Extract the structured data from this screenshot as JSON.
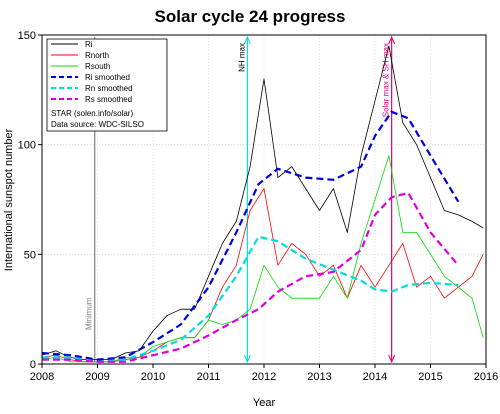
{
  "chart_data": {
    "type": "line",
    "title": "Solar cycle 24 progress",
    "xlabel": "Year",
    "ylabel": "International sunspot number",
    "xlim": [
      2008,
      2016
    ],
    "ylim": [
      0,
      150
    ],
    "x_ticks": [
      "2008",
      "2009",
      "2010",
      "2011",
      "2012",
      "2013",
      "2014",
      "2015",
      "2016"
    ],
    "y_ticks": [
      "0",
      "50",
      "100",
      "150"
    ],
    "grid": true,
    "legend_position": "top-left",
    "legend_notes": [
      "STAR (solen.info/solar)",
      "Data source: WDC-SILSO"
    ],
    "series": [
      {
        "name": "Ri",
        "color": "#000000",
        "style": "solid",
        "x": [
          2008.0,
          2008.25,
          2008.5,
          2008.75,
          2009.0,
          2009.25,
          2009.5,
          2009.75,
          2010.0,
          2010.25,
          2010.5,
          2010.75,
          2011.0,
          2011.25,
          2011.5,
          2011.75,
          2012.0,
          2012.25,
          2012.5,
          2012.75,
          2013.0,
          2013.25,
          2013.5,
          2013.75,
          2014.0,
          2014.25,
          2014.5,
          2014.75,
          2015.0,
          2015.25,
          2015.5,
          2015.75,
          2015.95
        ],
        "y": [
          4,
          6,
          3,
          2,
          2,
          2,
          5,
          6,
          15,
          22,
          25,
          25,
          40,
          55,
          65,
          90,
          130,
          85,
          90,
          80,
          70,
          80,
          60,
          95,
          120,
          145,
          110,
          100,
          85,
          70,
          68,
          65,
          62
        ]
      },
      {
        "name": "Rnorth",
        "color": "#ff0000",
        "style": "solid",
        "x": [
          2008.0,
          2008.25,
          2008.5,
          2008.75,
          2009.0,
          2009.25,
          2009.5,
          2009.75,
          2010.0,
          2010.25,
          2010.5,
          2010.75,
          2011.0,
          2011.25,
          2011.5,
          2011.75,
          2012.0,
          2012.25,
          2012.5,
          2012.75,
          2013.0,
          2013.25,
          2013.5,
          2013.75,
          2014.0,
          2014.25,
          2014.5,
          2014.75,
          2015.0,
          2015.25,
          2015.5,
          2015.75,
          2015.95
        ],
        "y": [
          3,
          4,
          2,
          1,
          1,
          1,
          2,
          3,
          6,
          10,
          12,
          12,
          20,
          35,
          45,
          70,
          80,
          45,
          55,
          50,
          40,
          45,
          30,
          45,
          35,
          45,
          55,
          35,
          40,
          30,
          35,
          40,
          50
        ]
      },
      {
        "name": "Rsouth",
        "color": "#00dd00",
        "style": "solid",
        "x": [
          2008.0,
          2008.25,
          2008.5,
          2008.75,
          2009.0,
          2009.25,
          2009.5,
          2009.75,
          2010.0,
          2010.25,
          2010.5,
          2010.75,
          2011.0,
          2011.25,
          2011.5,
          2011.75,
          2012.0,
          2012.25,
          2012.5,
          2012.75,
          2013.0,
          2013.25,
          2013.5,
          2013.75,
          2014.0,
          2014.25,
          2014.5,
          2014.75,
          2015.0,
          2015.25,
          2015.5,
          2015.75,
          2015.95
        ],
        "y": [
          2,
          3,
          1,
          1,
          1,
          1,
          3,
          3,
          8,
          10,
          12,
          12,
          20,
          18,
          20,
          25,
          45,
          35,
          30,
          30,
          30,
          40,
          30,
          55,
          75,
          95,
          60,
          60,
          50,
          40,
          35,
          30,
          12
        ]
      },
      {
        "name": "Ri smoothed",
        "color": "#0000dd",
        "style": "dashed",
        "x": [
          2008.0,
          2008.5,
          2009.0,
          2009.5,
          2010.0,
          2010.5,
          2011.0,
          2011.5,
          2011.9,
          2012.25,
          2012.75,
          2013.25,
          2013.75,
          2014.0,
          2014.3,
          2014.6,
          2015.0,
          2015.5
        ],
        "y": [
          5,
          4,
          2,
          3,
          10,
          18,
          35,
          60,
          82,
          89,
          85,
          84,
          90,
          104,
          115,
          112,
          95,
          74
        ]
      },
      {
        "name": "Rn smoothed",
        "color": "#00dddd",
        "style": "dashed",
        "x": [
          2008.0,
          2008.5,
          2009.0,
          2009.5,
          2010.0,
          2010.5,
          2011.0,
          2011.5,
          2011.9,
          2012.25,
          2012.75,
          2013.25,
          2013.75,
          2014.0,
          2014.3,
          2014.6,
          2015.0,
          2015.5
        ],
        "y": [
          3,
          3,
          1,
          2,
          6,
          11,
          22,
          40,
          58,
          56,
          48,
          43,
          38,
          34,
          33,
          36,
          37,
          36
        ]
      },
      {
        "name": "Rs smoothed",
        "color": "#dd00dd",
        "style": "dashed",
        "x": [
          2008.0,
          2008.5,
          2009.0,
          2009.5,
          2010.0,
          2010.5,
          2011.0,
          2011.5,
          2011.9,
          2012.25,
          2012.75,
          2013.25,
          2013.75,
          2014.0,
          2014.3,
          2014.6,
          2015.0,
          2015.5
        ],
        "y": [
          2,
          2,
          1,
          1,
          4,
          7,
          13,
          20,
          25,
          33,
          40,
          42,
          52,
          68,
          76,
          78,
          60,
          45
        ]
      }
    ],
    "annotations": [
      {
        "label": "Minimum",
        "x": 2008.95,
        "color": "#808080"
      },
      {
        "label": "NH max",
        "x": 2011.7,
        "color": "#00dddd"
      },
      {
        "label": "Solar max & SH max",
        "x": 2014.3,
        "color": "#dd0077"
      }
    ]
  }
}
